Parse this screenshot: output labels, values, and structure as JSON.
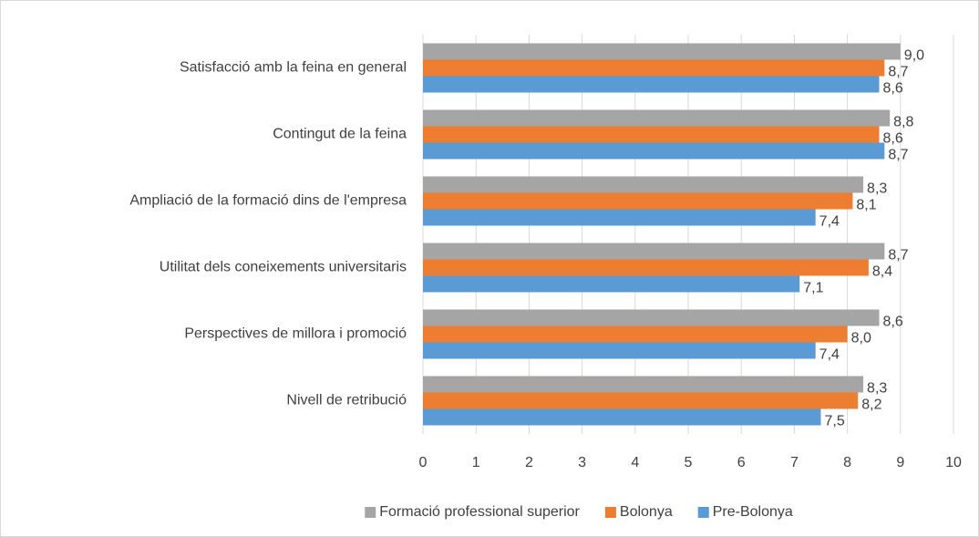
{
  "chart_data": {
    "type": "hbar",
    "categories": [
      "Satisfacció amb la feina en general",
      "Contingut de la feina",
      "Ampliació de la formació dins de l'empresa",
      "Utilitat dels coneixements universitaris",
      "Perspectives de millora i promoció",
      "Nivell de retribució"
    ],
    "series": [
      {
        "name": "Formació professional superior",
        "color": "#a5a5a5",
        "values": [
          9.0,
          8.8,
          8.3,
          8.7,
          8.6,
          8.3
        ],
        "value_labels": [
          "9,0",
          "8,8",
          "8,3",
          "8,7",
          "8,6",
          "8,3"
        ]
      },
      {
        "name": "Bolonya",
        "color": "#ed7d31",
        "values": [
          8.7,
          8.6,
          8.1,
          8.4,
          8.0,
          8.2
        ],
        "value_labels": [
          "8,7",
          "8,6",
          "8,1",
          "8,4",
          "8,0",
          "8,2"
        ]
      },
      {
        "name": "Pre-Bolonya",
        "color": "#5b9bd5",
        "values": [
          8.6,
          8.7,
          7.4,
          7.1,
          7.4,
          7.5
        ],
        "value_labels": [
          "8,6",
          "8,7",
          "7,4",
          "7,1",
          "7,4",
          "7,5"
        ]
      }
    ],
    "xlim": [
      0,
      10
    ],
    "xticks": [
      0,
      1,
      2,
      3,
      4,
      5,
      6,
      7,
      8,
      9,
      10
    ],
    "grid": true,
    "legend": "bottom"
  }
}
